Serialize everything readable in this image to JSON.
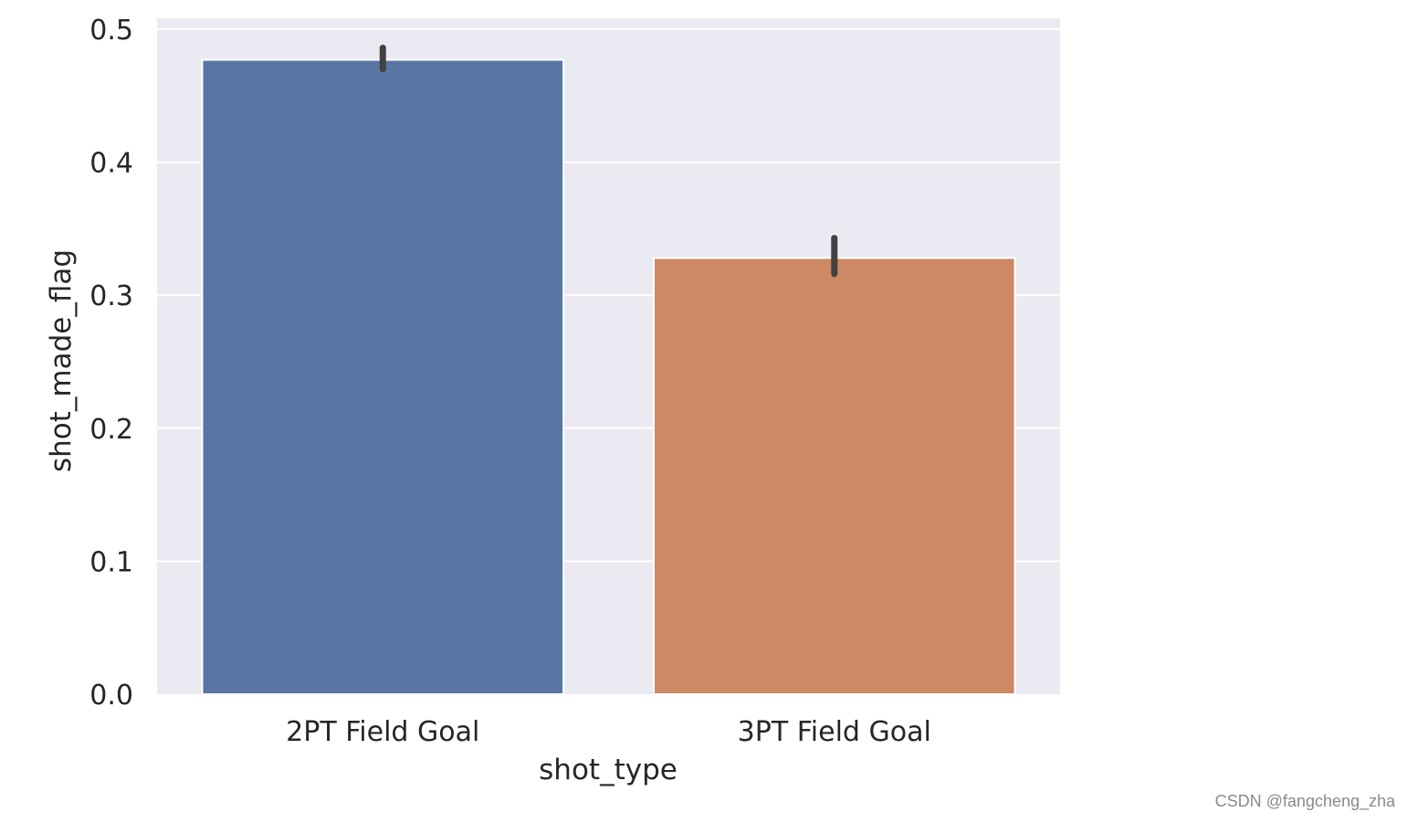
{
  "chart_data": {
    "type": "bar",
    "categories": [
      "2PT Field Goal",
      "3PT Field Goal"
    ],
    "values": [
      0.477,
      0.328
    ],
    "error_bars": [
      {
        "low": 0.47,
        "high": 0.486
      },
      {
        "low": 0.316,
        "high": 0.343
      }
    ],
    "xlabel": "shot_type",
    "ylabel": "shot_made_flag",
    "ylim": [
      0,
      0.5
    ],
    "yticks": [
      0.0,
      0.1,
      0.2,
      0.3,
      0.4,
      0.5
    ],
    "ytick_labels": [
      "0.0",
      "0.1",
      "0.2",
      "0.3",
      "0.4",
      "0.5"
    ],
    "grid": true,
    "colors": {
      "background": "#eaeaf2",
      "grid": "#ffffff",
      "bars": [
        "#5975a4",
        "#cc8963"
      ],
      "error_bar": "#424242"
    }
  },
  "watermark": "CSDN @fangcheng_zha"
}
